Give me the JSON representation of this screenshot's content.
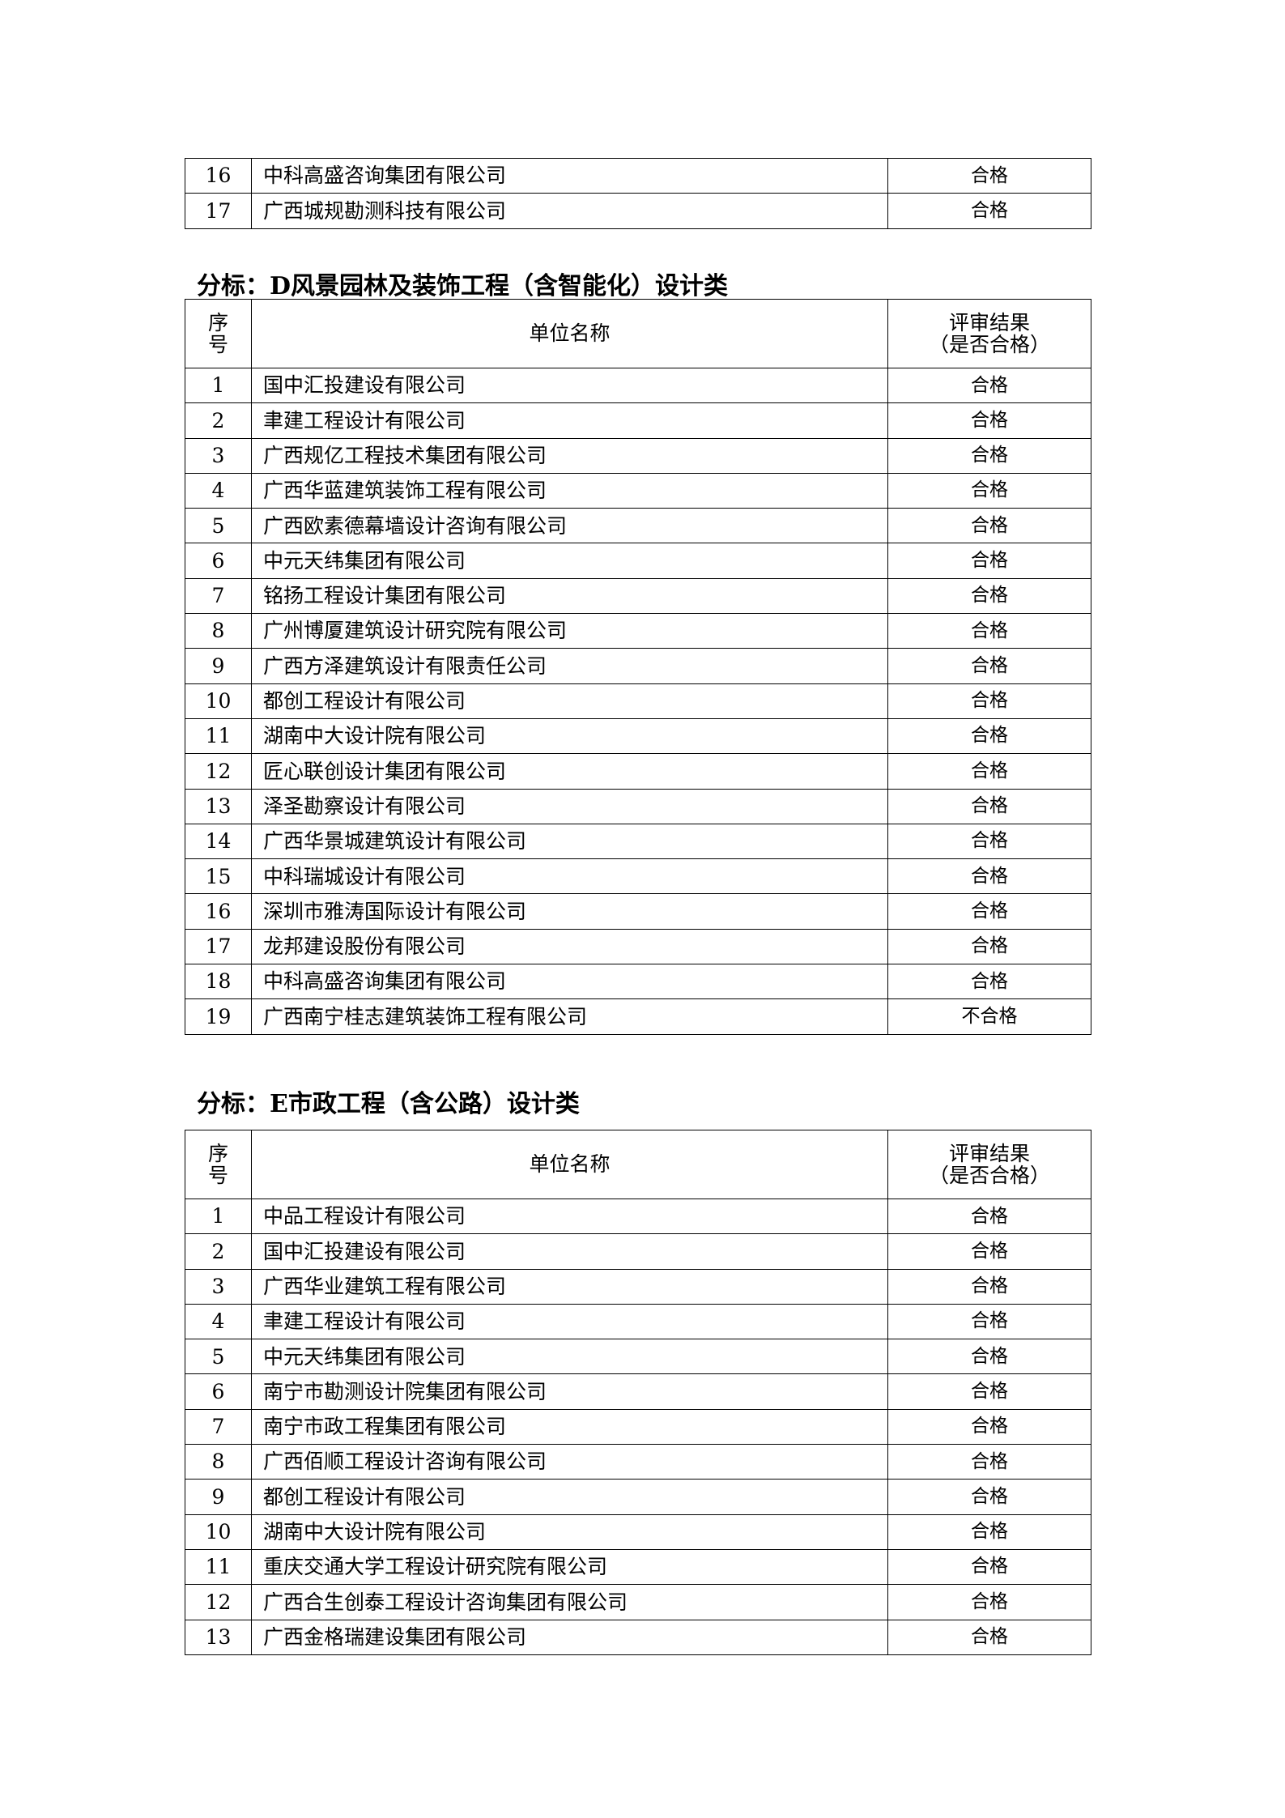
{
  "table_continued": {
    "rows": [
      {
        "no": "16",
        "name": "中科高盛咨询集团有限公司",
        "result": "合格"
      },
      {
        "no": "17",
        "name": "广西城规勘测科技有限公司",
        "result": "合格"
      }
    ]
  },
  "section_d": {
    "title": "分标：D风景园林及装饰工程（含智能化）设计类",
    "header": {
      "no": "序号",
      "name": "单位名称",
      "result_line1": "评审结果",
      "result_line2": "（是否合格）"
    },
    "rows": [
      {
        "no": "1",
        "name": "国中汇投建设有限公司",
        "result": "合格"
      },
      {
        "no": "2",
        "name": "聿建工程设计有限公司",
        "result": "合格"
      },
      {
        "no": "3",
        "name": "广西规亿工程技术集团有限公司",
        "result": "合格"
      },
      {
        "no": "4",
        "name": "广西华蓝建筑装饰工程有限公司",
        "result": "合格"
      },
      {
        "no": "5",
        "name": "广西欧素德幕墙设计咨询有限公司",
        "result": "合格"
      },
      {
        "no": "6",
        "name": "中元天纬集团有限公司",
        "result": "合格"
      },
      {
        "no": "7",
        "name": "铭扬工程设计集团有限公司",
        "result": "合格"
      },
      {
        "no": "8",
        "name": "广州博厦建筑设计研究院有限公司",
        "result": "合格"
      },
      {
        "no": "9",
        "name": "广西方泽建筑设计有限责任公司",
        "result": "合格"
      },
      {
        "no": "10",
        "name": "都创工程设计有限公司",
        "result": "合格"
      },
      {
        "no": "11",
        "name": "湖南中大设计院有限公司",
        "result": "合格"
      },
      {
        "no": "12",
        "name": "匠心联创设计集团有限公司",
        "result": "合格"
      },
      {
        "no": "13",
        "name": "泽圣勘察设计有限公司",
        "result": "合格"
      },
      {
        "no": "14",
        "name": "广西华景城建筑设计有限公司",
        "result": "合格"
      },
      {
        "no": "15",
        "name": "中科瑞城设计有限公司",
        "result": "合格"
      },
      {
        "no": "16",
        "name": "深圳市雅涛国际设计有限公司",
        "result": "合格"
      },
      {
        "no": "17",
        "name": "龙邦建设股份有限公司",
        "result": "合格"
      },
      {
        "no": "18",
        "name": "中科高盛咨询集团有限公司",
        "result": "合格"
      },
      {
        "no": "19",
        "name": "广西南宁桂志建筑装饰工程有限公司",
        "result": "不合格"
      }
    ]
  },
  "section_e": {
    "title": "分标：E市政工程（含公路）设计类",
    "header": {
      "no": "序号",
      "name": "单位名称",
      "result_line1": "评审结果",
      "result_line2": "（是否合格）"
    },
    "rows": [
      {
        "no": "1",
        "name": "中品工程设计有限公司",
        "result": "合格"
      },
      {
        "no": "2",
        "name": "国中汇投建设有限公司",
        "result": "合格"
      },
      {
        "no": "3",
        "name": "广西华业建筑工程有限公司",
        "result": "合格"
      },
      {
        "no": "4",
        "name": "聿建工程设计有限公司",
        "result": "合格"
      },
      {
        "no": "5",
        "name": "中元天纬集团有限公司",
        "result": "合格"
      },
      {
        "no": "6",
        "name": "南宁市勘测设计院集团有限公司",
        "result": "合格"
      },
      {
        "no": "7",
        "name": "南宁市政工程集团有限公司",
        "result": "合格"
      },
      {
        "no": "8",
        "name": "广西佰顺工程设计咨询有限公司",
        "result": "合格"
      },
      {
        "no": "9",
        "name": "都创工程设计有限公司",
        "result": "合格"
      },
      {
        "no": "10",
        "name": "湖南中大设计院有限公司",
        "result": "合格"
      },
      {
        "no": "11",
        "name": "重庆交通大学工程设计研究院有限公司",
        "result": "合格"
      },
      {
        "no": "12",
        "name": "广西合生创泰工程设计咨询集团有限公司",
        "result": "合格"
      },
      {
        "no": "13",
        "name": "广西金格瑞建设集团有限公司",
        "result": "合格"
      }
    ]
  }
}
